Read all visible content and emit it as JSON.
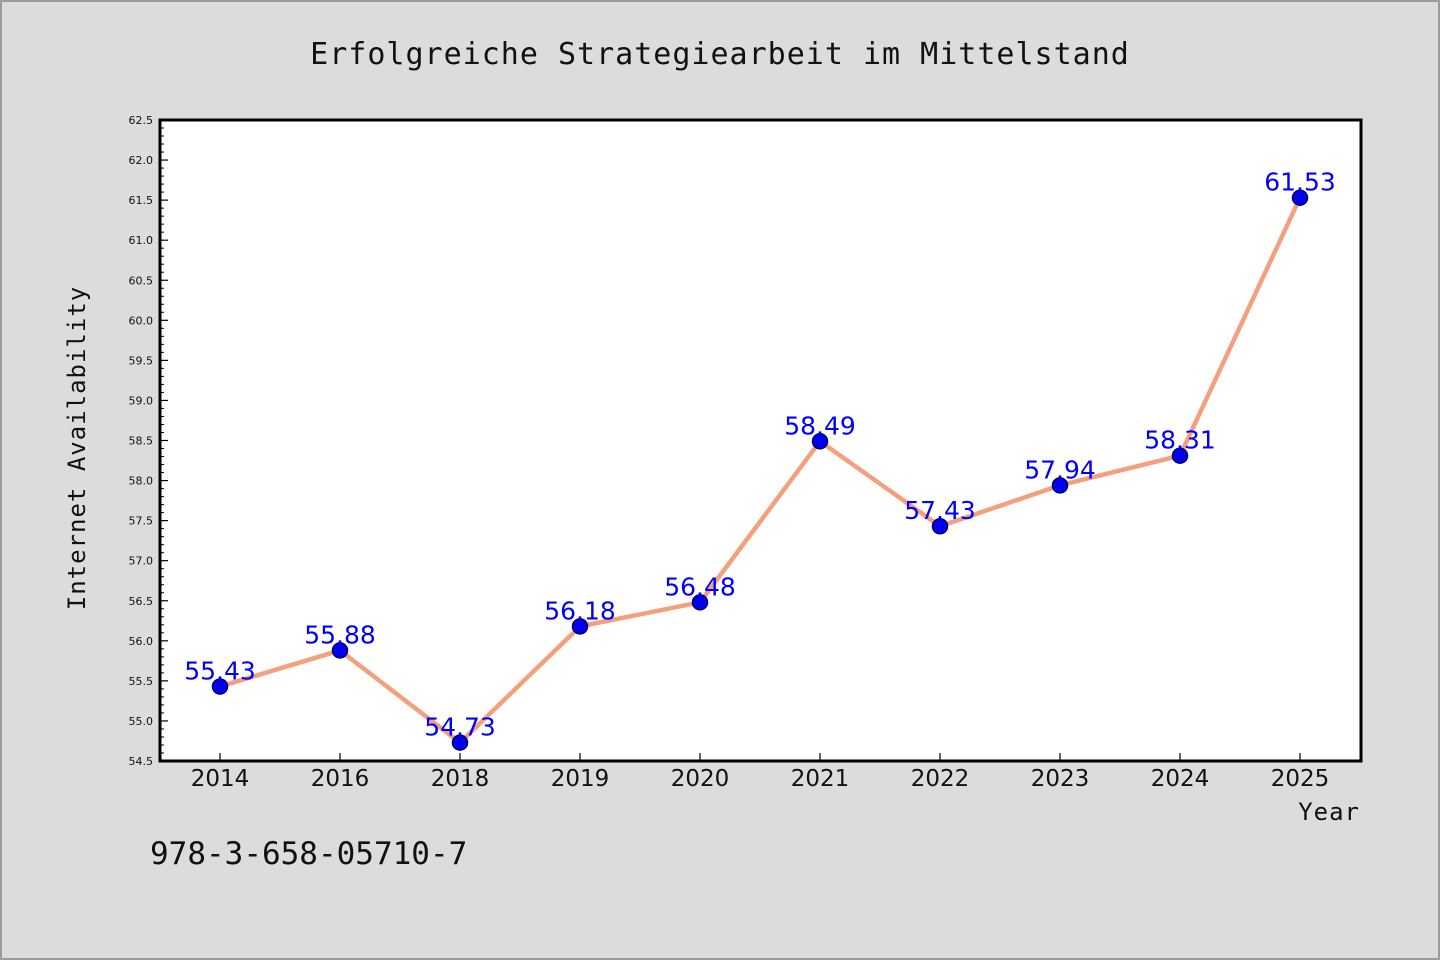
{
  "chart_data": {
    "type": "line",
    "title": "Erfolgreiche Strategiearbeit im Mittelstand",
    "xlabel": "Year",
    "ylabel": "Internet Availability",
    "categories": [
      "2014",
      "2016",
      "2018",
      "2019",
      "2020",
      "2021",
      "2022",
      "2023",
      "2024",
      "2025"
    ],
    "series": [
      {
        "values": [
          55.43,
          55.88,
          54.73,
          56.18,
          56.48,
          58.49,
          57.43,
          57.94,
          58.31,
          61.53
        ],
        "labels": [
          "55.43",
          "55.88",
          "54.73",
          "56.18",
          "56.48",
          "58.49",
          "57.43",
          "57.94",
          "58.31",
          "61.53"
        ]
      }
    ],
    "ylim": [
      54.5,
      62.5
    ],
    "yticks": [
      "54.5",
      "55.0",
      "55.5",
      "56.0",
      "56.5",
      "57.0",
      "57.5",
      "58.0",
      "58.5",
      "59.0",
      "59.5",
      "60.0",
      "60.5",
      "61.0",
      "61.5",
      "62.0",
      "62.5"
    ],
    "grid": false,
    "legend": "none"
  },
  "footer": {
    "isbn": "978-3-658-05710-7"
  },
  "colors": {
    "line": "#f4a07f",
    "marker": "#0000ee",
    "marker_edge": "#000066",
    "data_label": "#0000ff",
    "figure_bg": "#dcdcdc",
    "plot_bg": "#ffffff"
  }
}
